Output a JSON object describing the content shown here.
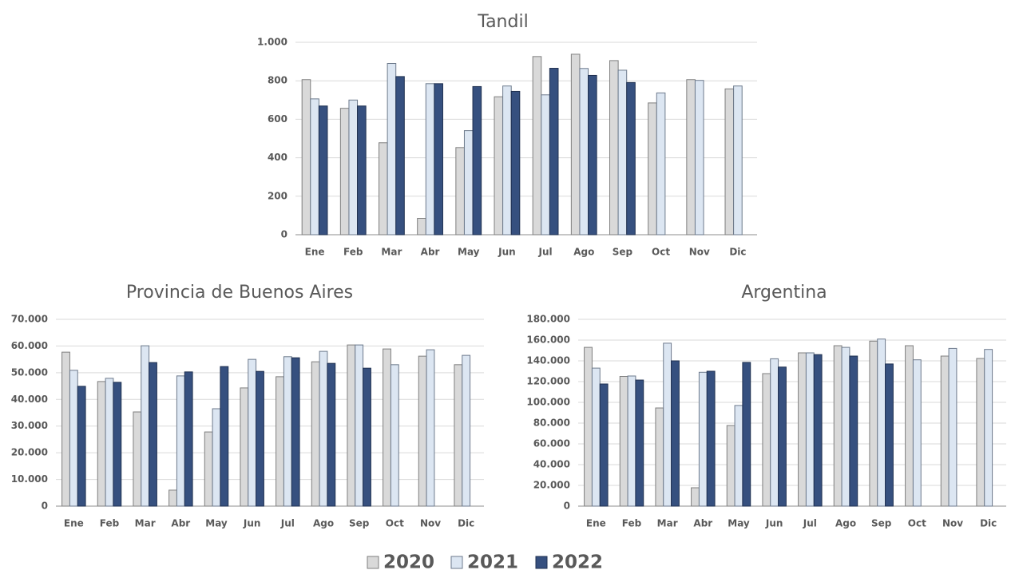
{
  "chart_data": [
    {
      "type": "bar",
      "title": "Tandil",
      "categories": [
        "Ene",
        "Feb",
        "Mar",
        "Abr",
        "May",
        "Jun",
        "Jul",
        "Ago",
        "Sep",
        "Oct",
        "Nov",
        "Dic"
      ],
      "series": [
        {
          "name": "2020",
          "color": "#d9d9d9",
          "values": [
            806,
            657,
            478,
            85,
            453,
            717,
            926,
            938,
            905,
            685,
            806,
            758
          ]
        },
        {
          "name": "2021",
          "color": "#dce6f2",
          "values": [
            706,
            700,
            890,
            785,
            541,
            773,
            727,
            864,
            855,
            737,
            802,
            773
          ]
        },
        {
          "name": "2022",
          "color": "#36507f",
          "values": [
            669,
            669,
            822,
            785,
            770,
            745,
            865,
            828,
            791,
            null,
            null,
            null
          ]
        }
      ],
      "ylim": [
        0,
        1000
      ],
      "yticks": [
        0,
        200,
        400,
        600,
        800,
        {
          "value": 1000,
          "label": "1.000"
        }
      ],
      "grid": true
    },
    {
      "type": "bar",
      "title": "Provincia de Buenos Aires",
      "categories": [
        "Ene",
        "Feb",
        "Mar",
        "Abr",
        "May",
        "Jun",
        "Jul",
        "Ago",
        "Sep",
        "Oct",
        "Nov",
        "Dic"
      ],
      "series": [
        {
          "name": "2020",
          "color": "#d9d9d9",
          "values": [
            57700,
            46700,
            35300,
            6000,
            27800,
            44300,
            48500,
            54100,
            60400,
            58900,
            56200,
            53000
          ]
        },
        {
          "name": "2021",
          "color": "#dce6f2",
          "values": [
            50900,
            47900,
            60100,
            48800,
            36500,
            55000,
            56000,
            58000,
            60400,
            53000,
            58600,
            56500
          ]
        },
        {
          "name": "2022",
          "color": "#36507f",
          "values": [
            44900,
            46400,
            53800,
            50300,
            52300,
            50500,
            55600,
            53500,
            51700,
            null,
            null,
            null
          ]
        }
      ],
      "ylim": [
        0,
        70000
      ],
      "yticks": [
        0,
        {
          "value": 10000,
          "label": "10.000"
        },
        {
          "value": 20000,
          "label": "20.000"
        },
        {
          "value": 30000,
          "label": "30.000"
        },
        {
          "value": 40000,
          "label": "40.000"
        },
        {
          "value": 50000,
          "label": "50.000"
        },
        {
          "value": 60000,
          "label": "60.000"
        },
        {
          "value": 70000,
          "label": "70.000"
        }
      ],
      "grid": true
    },
    {
      "type": "bar",
      "title": "Argentina",
      "categories": [
        "Ene",
        "Feb",
        "Mar",
        "Abr",
        "May",
        "Jun",
        "Jul",
        "Ago",
        "Sep",
        "Oct",
        "Nov",
        "Dic"
      ],
      "series": [
        {
          "name": "2020",
          "color": "#d9d9d9",
          "values": [
            153000,
            125000,
            94600,
            17700,
            77700,
            127700,
            147700,
            154600,
            159000,
            154600,
            144600,
            142300
          ]
        },
        {
          "name": "2021",
          "color": "#dce6f2",
          "values": [
            133000,
            125400,
            157000,
            129000,
            97000,
            142000,
            147700,
            153000,
            161000,
            141000,
            152000,
            151000
          ]
        },
        {
          "name": "2022",
          "color": "#36507f",
          "values": [
            117700,
            121500,
            140000,
            130000,
            138500,
            134000,
            146000,
            144600,
            137000,
            null,
            null,
            null
          ]
        }
      ],
      "ylim": [
        0,
        180000
      ],
      "yticks": [
        0,
        {
          "value": 20000,
          "label": "20.000"
        },
        {
          "value": 40000,
          "label": "40.000"
        },
        {
          "value": 60000,
          "label": "60.000"
        },
        {
          "value": 80000,
          "label": "80.000"
        },
        {
          "value": 100000,
          "label": "100.000"
        },
        {
          "value": 120000,
          "label": "120.000"
        },
        {
          "value": 140000,
          "label": "140.000"
        },
        {
          "value": 160000,
          "label": "160.000"
        },
        {
          "value": 180000,
          "label": "180.000"
        }
      ],
      "grid": true
    }
  ]
}
